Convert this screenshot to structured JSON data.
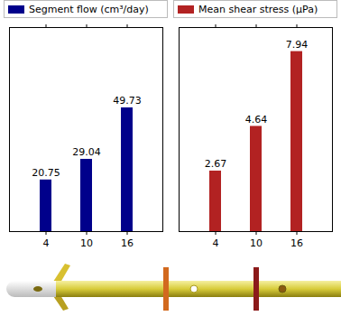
{
  "chart_data": [
    {
      "type": "bar",
      "categories": [
        "4",
        "10",
        "16"
      ],
      "series": [
        {
          "name": "Segment flow (cm³/day)",
          "color": "#00008b",
          "values": [
            20.75,
            29.04,
            49.73
          ]
        }
      ],
      "ylim": [
        0,
        82
      ],
      "legend": "top",
      "data_labels": true,
      "tick_labels": "x"
    },
    {
      "type": "bar",
      "categories": [
        "4",
        "10",
        "16"
      ],
      "series": [
        {
          "name": "Mean shear stress (μPa)",
          "color": "#b22222",
          "values": [
            2.67,
            4.64,
            7.94
          ]
        }
      ],
      "ylim": [
        0,
        9
      ],
      "legend": "top",
      "data_labels": true,
      "tick_labels": "x"
    }
  ]
}
